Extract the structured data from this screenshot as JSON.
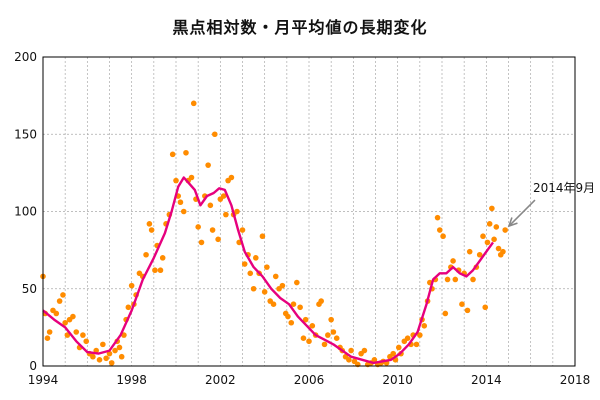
{
  "chart_data": {
    "type": "scatter",
    "title": "黒点相対数・月平均値の長期変化",
    "xlim": [
      1994,
      2018
    ],
    "ylim": [
      0,
      200
    ],
    "xticks": [
      1994,
      1998,
      2002,
      2006,
      2010,
      2014,
      2018
    ],
    "yticks": [
      0,
      50,
      100,
      150,
      200
    ],
    "grid": true,
    "annotation": {
      "text": "2014年9月",
      "x": 2014.75,
      "y": 88
    },
    "colors": {
      "monthly": "#ff8c00",
      "smoothed": "#e6007e",
      "grid": "#aaaaaa",
      "arrow": "#888888"
    },
    "series": [
      {
        "kind": "points",
        "points": [
          [
            1994.0,
            58
          ],
          [
            1994.1,
            34
          ],
          [
            1994.2,
            18
          ],
          [
            1994.3,
            22
          ],
          [
            1994.45,
            36
          ],
          [
            1994.6,
            34
          ],
          [
            1994.75,
            42
          ],
          [
            1994.9,
            46
          ],
          [
            1995.0,
            28
          ],
          [
            1995.1,
            20
          ],
          [
            1995.2,
            30
          ],
          [
            1995.35,
            32
          ],
          [
            1995.5,
            22
          ],
          [
            1995.65,
            12
          ],
          [
            1995.8,
            20
          ],
          [
            1995.95,
            16
          ],
          [
            1996.1,
            8
          ],
          [
            1996.25,
            6
          ],
          [
            1996.4,
            10
          ],
          [
            1996.55,
            4
          ],
          [
            1996.7,
            14
          ],
          [
            1996.85,
            5
          ],
          [
            1997.0,
            8
          ],
          [
            1997.1,
            2
          ],
          [
            1997.25,
            10
          ],
          [
            1997.35,
            16
          ],
          [
            1997.45,
            12
          ],
          [
            1997.55,
            6
          ],
          [
            1997.65,
            20
          ],
          [
            1997.75,
            30
          ],
          [
            1997.85,
            38
          ],
          [
            1998.0,
            52
          ],
          [
            1998.1,
            40
          ],
          [
            1998.2,
            46
          ],
          [
            1998.35,
            60
          ],
          [
            1998.5,
            58
          ],
          [
            1998.65,
            72
          ],
          [
            1998.8,
            92
          ],
          [
            1998.9,
            88
          ],
          [
            1999.05,
            62
          ],
          [
            1999.15,
            78
          ],
          [
            1999.3,
            62
          ],
          [
            1999.4,
            70
          ],
          [
            1999.55,
            92
          ],
          [
            1999.7,
            98
          ],
          [
            1999.85,
            137
          ],
          [
            2000.0,
            120
          ],
          [
            2000.1,
            110
          ],
          [
            2000.2,
            106
          ],
          [
            2000.35,
            100
          ],
          [
            2000.45,
            138
          ],
          [
            2000.55,
            120
          ],
          [
            2000.7,
            122
          ],
          [
            2000.8,
            170
          ],
          [
            2000.9,
            108
          ],
          [
            2001.0,
            90
          ],
          [
            2001.15,
            80
          ],
          [
            2001.3,
            110
          ],
          [
            2001.45,
            130
          ],
          [
            2001.55,
            104
          ],
          [
            2001.65,
            88
          ],
          [
            2001.75,
            150
          ],
          [
            2001.9,
            82
          ],
          [
            2002.0,
            108
          ],
          [
            2002.15,
            110
          ],
          [
            2002.25,
            98
          ],
          [
            2002.35,
            120
          ],
          [
            2002.5,
            122
          ],
          [
            2002.6,
            98
          ],
          [
            2002.75,
            100
          ],
          [
            2002.85,
            80
          ],
          [
            2003.0,
            88
          ],
          [
            2003.1,
            66
          ],
          [
            2003.25,
            72
          ],
          [
            2003.35,
            60
          ],
          [
            2003.5,
            50
          ],
          [
            2003.6,
            70
          ],
          [
            2003.75,
            60
          ],
          [
            2003.9,
            84
          ],
          [
            2004.0,
            48
          ],
          [
            2004.1,
            64
          ],
          [
            2004.25,
            42
          ],
          [
            2004.4,
            40
          ],
          [
            2004.5,
            58
          ],
          [
            2004.65,
            50
          ],
          [
            2004.8,
            52
          ],
          [
            2004.95,
            34
          ],
          [
            2005.05,
            32
          ],
          [
            2005.2,
            28
          ],
          [
            2005.3,
            40
          ],
          [
            2005.45,
            54
          ],
          [
            2005.6,
            38
          ],
          [
            2005.75,
            18
          ],
          [
            2005.85,
            30
          ],
          [
            2006.0,
            16
          ],
          [
            2006.15,
            26
          ],
          [
            2006.3,
            20
          ],
          [
            2006.45,
            40
          ],
          [
            2006.55,
            42
          ],
          [
            2006.7,
            14
          ],
          [
            2006.85,
            20
          ],
          [
            2007.0,
            30
          ],
          [
            2007.1,
            22
          ],
          [
            2007.25,
            18
          ],
          [
            2007.4,
            12
          ],
          [
            2007.5,
            10
          ],
          [
            2007.65,
            6
          ],
          [
            2007.8,
            4
          ],
          [
            2007.9,
            10
          ],
          [
            2008.05,
            3
          ],
          [
            2008.2,
            1
          ],
          [
            2008.35,
            8
          ],
          [
            2008.5,
            10
          ],
          [
            2008.65,
            1
          ],
          [
            2008.8,
            2
          ],
          [
            2008.95,
            4
          ],
          [
            2009.1,
            1
          ],
          [
            2009.25,
            2
          ],
          [
            2009.35,
            3
          ],
          [
            2009.5,
            2
          ],
          [
            2009.65,
            6
          ],
          [
            2009.8,
            8
          ],
          [
            2009.9,
            4
          ],
          [
            2010.05,
            12
          ],
          [
            2010.15,
            8
          ],
          [
            2010.3,
            16
          ],
          [
            2010.45,
            18
          ],
          [
            2010.6,
            14
          ],
          [
            2010.7,
            20
          ],
          [
            2010.85,
            14
          ],
          [
            2011.0,
            20
          ],
          [
            2011.1,
            30
          ],
          [
            2011.2,
            26
          ],
          [
            2011.35,
            42
          ],
          [
            2011.45,
            54
          ],
          [
            2011.55,
            50
          ],
          [
            2011.7,
            56
          ],
          [
            2011.8,
            96
          ],
          [
            2011.9,
            88
          ],
          [
            2012.05,
            84
          ],
          [
            2012.15,
            34
          ],
          [
            2012.25,
            56
          ],
          [
            2012.4,
            64
          ],
          [
            2012.5,
            68
          ],
          [
            2012.6,
            56
          ],
          [
            2012.75,
            62
          ],
          [
            2012.9,
            40
          ],
          [
            2013.0,
            60
          ],
          [
            2013.15,
            36
          ],
          [
            2013.25,
            74
          ],
          [
            2013.4,
            56
          ],
          [
            2013.55,
            64
          ],
          [
            2013.7,
            72
          ],
          [
            2013.85,
            84
          ],
          [
            2013.95,
            38
          ],
          [
            2014.05,
            80
          ],
          [
            2014.15,
            92
          ],
          [
            2014.25,
            102
          ],
          [
            2014.35,
            82
          ],
          [
            2014.45,
            90
          ],
          [
            2014.55,
            76
          ],
          [
            2014.65,
            72
          ],
          [
            2014.75,
            74
          ],
          [
            2014.85,
            88
          ]
        ]
      },
      {
        "kind": "smoothed",
        "points": [
          [
            1994.0,
            36
          ],
          [
            1994.5,
            30
          ],
          [
            1995.0,
            25
          ],
          [
            1995.5,
            16
          ],
          [
            1996.0,
            9
          ],
          [
            1996.5,
            8
          ],
          [
            1997.0,
            10
          ],
          [
            1997.5,
            20
          ],
          [
            1998.0,
            36
          ],
          [
            1998.5,
            56
          ],
          [
            1999.0,
            70
          ],
          [
            1999.5,
            86
          ],
          [
            1999.8,
            100
          ],
          [
            2000.1,
            116
          ],
          [
            2000.35,
            122
          ],
          [
            2000.6,
            118
          ],
          [
            2000.85,
            114
          ],
          [
            2001.1,
            104
          ],
          [
            2001.4,
            110
          ],
          [
            2001.7,
            112
          ],
          [
            2001.95,
            115
          ],
          [
            2002.2,
            114
          ],
          [
            2002.5,
            104
          ],
          [
            2002.8,
            88
          ],
          [
            2003.1,
            74
          ],
          [
            2003.5,
            64
          ],
          [
            2003.9,
            58
          ],
          [
            2004.3,
            50
          ],
          [
            2004.7,
            44
          ],
          [
            2005.1,
            40
          ],
          [
            2005.5,
            32
          ],
          [
            2005.9,
            26
          ],
          [
            2006.3,
            20
          ],
          [
            2006.7,
            17
          ],
          [
            2007.1,
            14
          ],
          [
            2007.5,
            10
          ],
          [
            2007.9,
            6
          ],
          [
            2008.4,
            4
          ],
          [
            2008.9,
            2
          ],
          [
            2009.3,
            3
          ],
          [
            2009.7,
            4
          ],
          [
            2010.1,
            8
          ],
          [
            2010.5,
            14
          ],
          [
            2010.9,
            22
          ],
          [
            2011.3,
            40
          ],
          [
            2011.6,
            56
          ],
          [
            2011.9,
            60
          ],
          [
            2012.2,
            60
          ],
          [
            2012.5,
            64
          ],
          [
            2012.8,
            60
          ],
          [
            2013.1,
            58
          ],
          [
            2013.4,
            62
          ],
          [
            2013.7,
            68
          ],
          [
            2014.0,
            74
          ],
          [
            2014.3,
            80
          ]
        ]
      }
    ]
  }
}
